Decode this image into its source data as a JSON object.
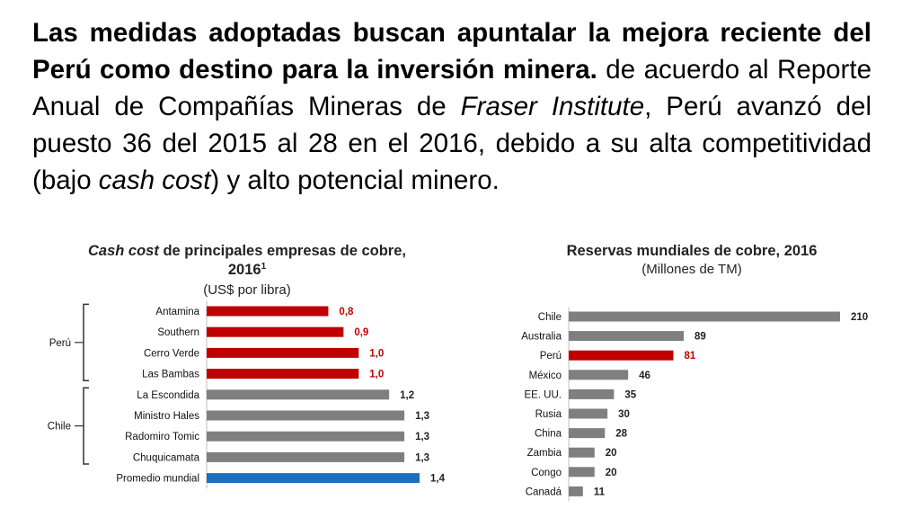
{
  "paragraph": {
    "bold_lead": "Las medidas adoptadas buscan apuntalar la mejora reciente del Perú como destino para la inversión minera.",
    "part1": " de acuerdo al Reporte Anual de Compañías Mineras de ",
    "italic1": "Fraser Institute",
    "part2": ", Perú avanzó del puesto 36 del 2015 al 28 en el 2016, debido a su alta competitividad (bajo ",
    "italic2": "cash cost",
    "part3": ") y alto potencial minero."
  },
  "colors": {
    "red": "#c00000",
    "gray": "#7f7f7f",
    "blue": "#1f6fbf",
    "text": "#222222"
  },
  "chart_data": [
    {
      "type": "bar",
      "orientation": "horizontal",
      "title_italic": "Cash cost",
      "title_rest": " de principales empresas de cobre,",
      "title_line2": "2016",
      "title_sup": "1",
      "subtitle": "(US$ por libra)",
      "categories": [
        "Antamina",
        "Southern",
        "Cerro Verde",
        "Las Bambas",
        "La Escondida",
        "Ministro Hales",
        "Radomiro Tomic",
        "Chuquicamata",
        "Promedio mundial"
      ],
      "values": [
        0.8,
        0.9,
        1.0,
        1.0,
        1.2,
        1.3,
        1.3,
        1.3,
        1.4
      ],
      "value_labels": [
        "0,8",
        "0,9",
        "1,0",
        "1,0",
        "1,2",
        "1,3",
        "1,3",
        "1,3",
        "1,4"
      ],
      "bar_colors": [
        "red",
        "red",
        "red",
        "red",
        "gray",
        "gray",
        "gray",
        "gray",
        "blue"
      ],
      "groups": [
        {
          "label": "Perú",
          "from": 0,
          "to": 3
        },
        {
          "label": "Chile",
          "from": 4,
          "to": 7
        }
      ],
      "xlim": [
        0,
        1.4
      ]
    },
    {
      "type": "bar",
      "orientation": "horizontal",
      "title": "Reservas mundiales de cobre, 2016",
      "subtitle": "(Millones de TM)",
      "categories": [
        "Chile",
        "Australia",
        "Perú",
        "México",
        "EE. UU.",
        "Rusia",
        "China",
        "Zambia",
        "Congo",
        "Canadá"
      ],
      "values": [
        210,
        89,
        81,
        46,
        35,
        30,
        28,
        20,
        20,
        11
      ],
      "value_labels": [
        "210",
        "89",
        "81",
        "46",
        "35",
        "30",
        "28",
        "20",
        "20",
        "11"
      ],
      "bar_colors": [
        "gray",
        "gray",
        "red",
        "gray",
        "gray",
        "gray",
        "gray",
        "gray",
        "gray",
        "gray"
      ],
      "xlim": [
        0,
        210
      ]
    }
  ]
}
